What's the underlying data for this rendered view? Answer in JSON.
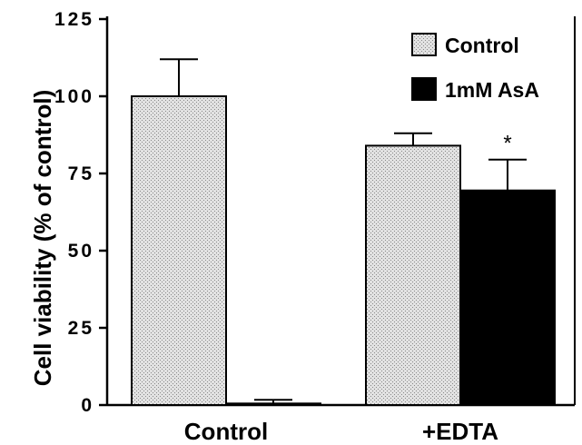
{
  "chart_data": {
    "type": "bar",
    "categories": [
      "Control",
      "+EDTA"
    ],
    "series": [
      {
        "name": "Control",
        "values": [
          100,
          84
        ],
        "errors": [
          12,
          4
        ],
        "color": "#d9d9d9",
        "pattern": "stipple"
      },
      {
        "name": "1mM AsA",
        "values": [
          0.5,
          69.5
        ],
        "errors": [
          1.2,
          10
        ],
        "color": "#000000"
      }
    ],
    "ylabel": "Cell viability (% of control)",
    "xlabel": "",
    "title": "",
    "ylim": [
      0,
      125
    ],
    "yticks": [
      0,
      25,
      50,
      75,
      100,
      125
    ],
    "legend_position": "top-right",
    "grid": false,
    "annotations": [
      {
        "text": "*",
        "category": "+EDTA",
        "series": "1mM AsA"
      }
    ]
  }
}
